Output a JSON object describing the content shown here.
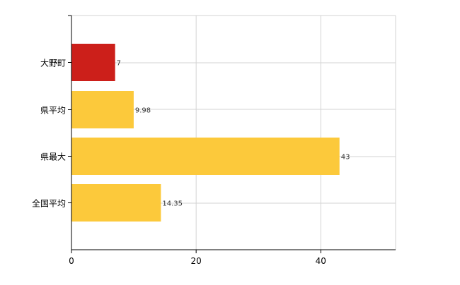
{
  "chart_data": {
    "type": "bar",
    "orientation": "horizontal",
    "categories": [
      "大野町",
      "県平均",
      "県最大",
      "全国平均"
    ],
    "values": [
      7,
      9.98,
      43,
      14.35
    ],
    "value_labels": [
      "7",
      "9.98",
      "43",
      "14.35"
    ],
    "bar_colors": [
      "#cc1f1a",
      "#fcc93b",
      "#fcc93b",
      "#fcc93b"
    ],
    "xlim": [
      0,
      52
    ],
    "xticks": [
      0,
      20,
      40
    ],
    "xtick_labels": [
      "0",
      "20",
      "40"
    ],
    "title": "",
    "xlabel": "",
    "ylabel": "",
    "grid": true,
    "legend": "none"
  }
}
